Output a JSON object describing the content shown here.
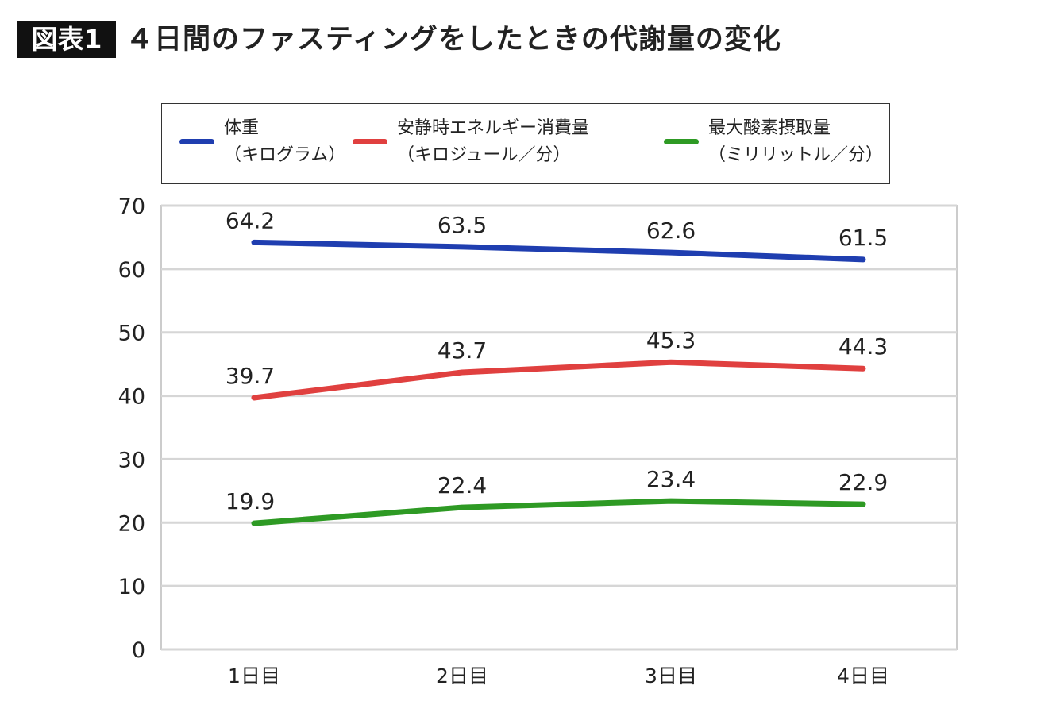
{
  "title": {
    "badge": "図表1",
    "text": "４日間のファスティングをしたときの代謝量の変化"
  },
  "chart_data": {
    "type": "line",
    "title": "４日間のファスティングをしたときの代謝量の変化",
    "categories": [
      "1日目",
      "2日目",
      "3日目",
      "4日目"
    ],
    "ylim": [
      0,
      70
    ],
    "yticks": [
      "0",
      "10",
      "20",
      "30",
      "40",
      "50",
      "60",
      "70"
    ],
    "grid": true,
    "legend_position": "top",
    "series": [
      {
        "name": "体重",
        "unit": "（キログラム）",
        "color": "#1f3eb0",
        "values": [
          64.2,
          63.5,
          62.6,
          61.5
        ],
        "labels": [
          "64.2",
          "63.5",
          "62.6",
          "61.5"
        ]
      },
      {
        "name": "安静時エネルギー消費量",
        "unit": "（キロジュール／分）",
        "color": "#e0403f",
        "values": [
          39.7,
          43.7,
          45.3,
          44.3
        ],
        "labels": [
          "39.7",
          "43.7",
          "45.3",
          "44.3"
        ]
      },
      {
        "name": "最大酸素摂取量",
        "unit": "（ミリリットル／分）",
        "color": "#2e9a24",
        "values": [
          19.9,
          22.4,
          23.4,
          22.9
        ],
        "labels": [
          "19.9",
          "22.4",
          "23.4",
          "22.9"
        ]
      }
    ]
  }
}
